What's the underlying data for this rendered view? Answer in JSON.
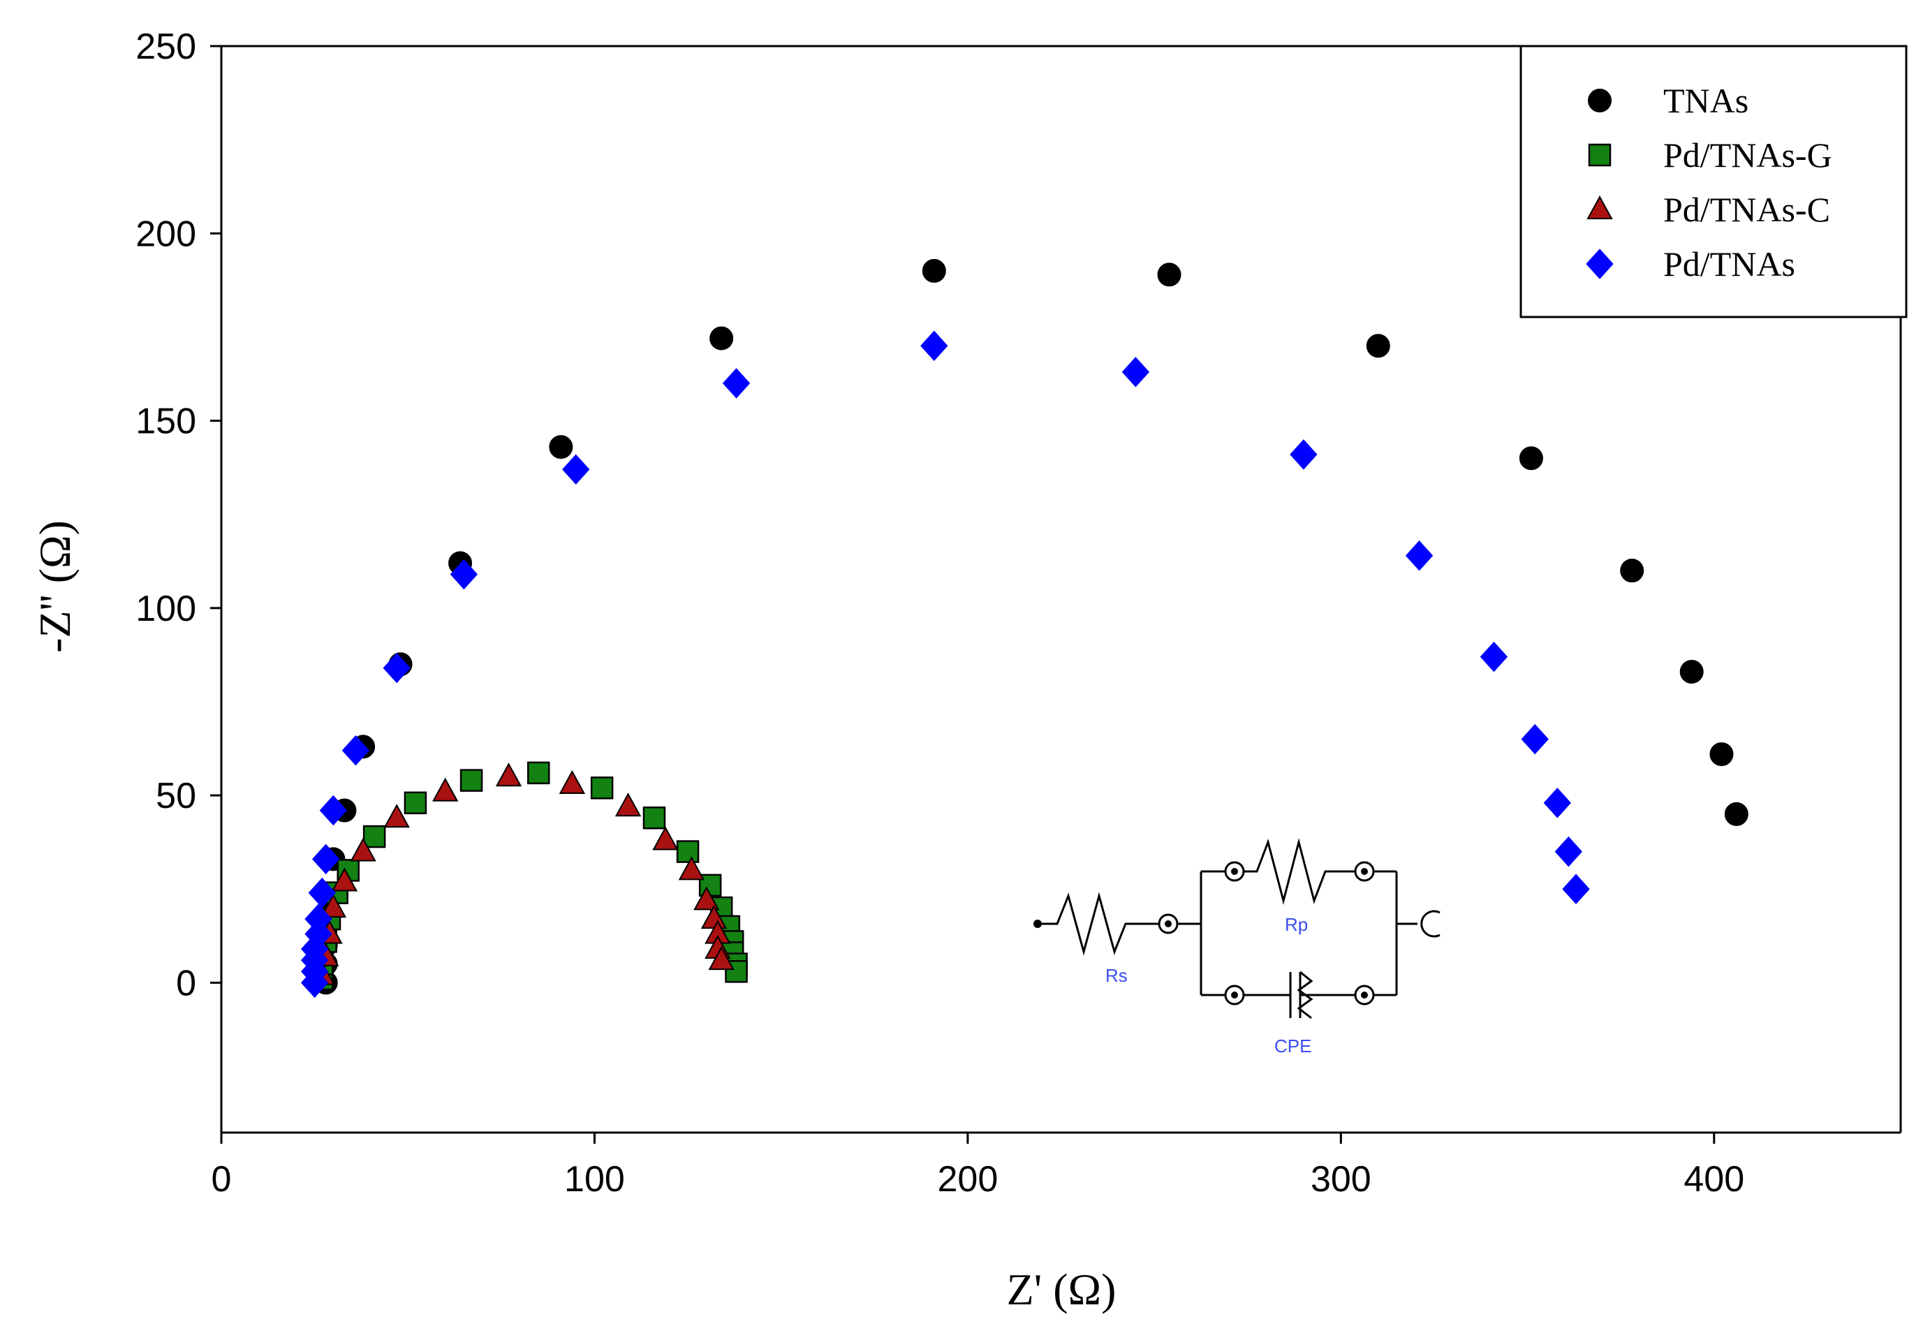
{
  "chart_data": {
    "type": "scatter",
    "title": "",
    "xlabel": "Z' (Ω)",
    "ylabel": "-Z'' (Ω)",
    "xlim": [
      0,
      450
    ],
    "ylim": [
      -40,
      250
    ],
    "xticks": [
      0,
      100,
      200,
      300,
      400
    ],
    "yticks": [
      0,
      50,
      100,
      150,
      200,
      250
    ],
    "legend_position": "top-right",
    "series": [
      {
        "name": "TNAs",
        "marker": "circle",
        "color": "#000000",
        "points": [
          [
            28,
            0
          ],
          [
            28,
            5
          ],
          [
            28,
            10
          ],
          [
            29,
            18
          ],
          [
            30,
            33
          ],
          [
            33,
            46
          ],
          [
            38,
            63
          ],
          [
            48,
            85
          ],
          [
            64,
            112
          ],
          [
            91,
            143
          ],
          [
            134,
            172
          ],
          [
            191,
            190
          ],
          [
            254,
            189
          ],
          [
            310,
            170
          ],
          [
            351,
            140
          ],
          [
            378,
            110
          ],
          [
            394,
            83
          ],
          [
            402,
            61
          ],
          [
            406,
            45
          ]
        ]
      },
      {
        "name": "Pd/TNAs-G",
        "marker": "square",
        "color": "#138213",
        "points": [
          [
            27,
            1
          ],
          [
            27,
            5
          ],
          [
            28,
            11
          ],
          [
            29,
            17
          ],
          [
            31,
            24
          ],
          [
            34,
            30
          ],
          [
            41,
            39
          ],
          [
            52,
            48
          ],
          [
            67,
            54
          ],
          [
            85,
            56
          ],
          [
            102,
            52
          ],
          [
            116,
            44
          ],
          [
            125,
            35
          ],
          [
            131,
            26
          ],
          [
            134,
            20
          ],
          [
            136,
            15
          ],
          [
            137,
            11
          ],
          [
            137,
            8
          ],
          [
            138,
            5
          ],
          [
            138,
            3
          ]
        ]
      },
      {
        "name": "Pd/TNAs-C",
        "marker": "triangle",
        "color": "#aa1111",
        "points": [
          [
            27,
            2
          ],
          [
            28,
            7
          ],
          [
            29,
            13
          ],
          [
            30,
            20
          ],
          [
            33,
            27
          ],
          [
            38,
            35
          ],
          [
            47,
            44
          ],
          [
            60,
            51
          ],
          [
            77,
            55
          ],
          [
            94,
            53
          ],
          [
            109,
            47
          ],
          [
            119,
            38
          ],
          [
            126,
            30
          ],
          [
            130,
            22
          ],
          [
            132,
            17
          ],
          [
            133,
            13
          ],
          [
            133,
            9
          ],
          [
            134,
            6
          ]
        ]
      },
      {
        "name": "Pd/TNAs",
        "marker": "diamond",
        "color": "#0000ff",
        "points": [
          [
            25,
            0
          ],
          [
            25,
            3
          ],
          [
            25,
            6
          ],
          [
            25,
            9
          ],
          [
            26,
            13
          ],
          [
            26,
            17
          ],
          [
            27,
            24
          ],
          [
            28,
            33
          ],
          [
            30,
            46
          ],
          [
            36,
            62
          ],
          [
            47,
            84
          ],
          [
            65,
            109
          ],
          [
            95,
            137
          ],
          [
            138,
            160
          ],
          [
            191,
            170
          ],
          [
            245,
            163
          ],
          [
            290,
            141
          ],
          [
            321,
            114
          ],
          [
            341,
            87
          ],
          [
            352,
            65
          ],
          [
            358,
            48
          ],
          [
            361,
            35
          ],
          [
            363,
            25
          ]
        ]
      }
    ],
    "inset": {
      "type": "equivalent-circuit",
      "labels": [
        "Rs",
        "Rp",
        "CPE"
      ]
    }
  }
}
